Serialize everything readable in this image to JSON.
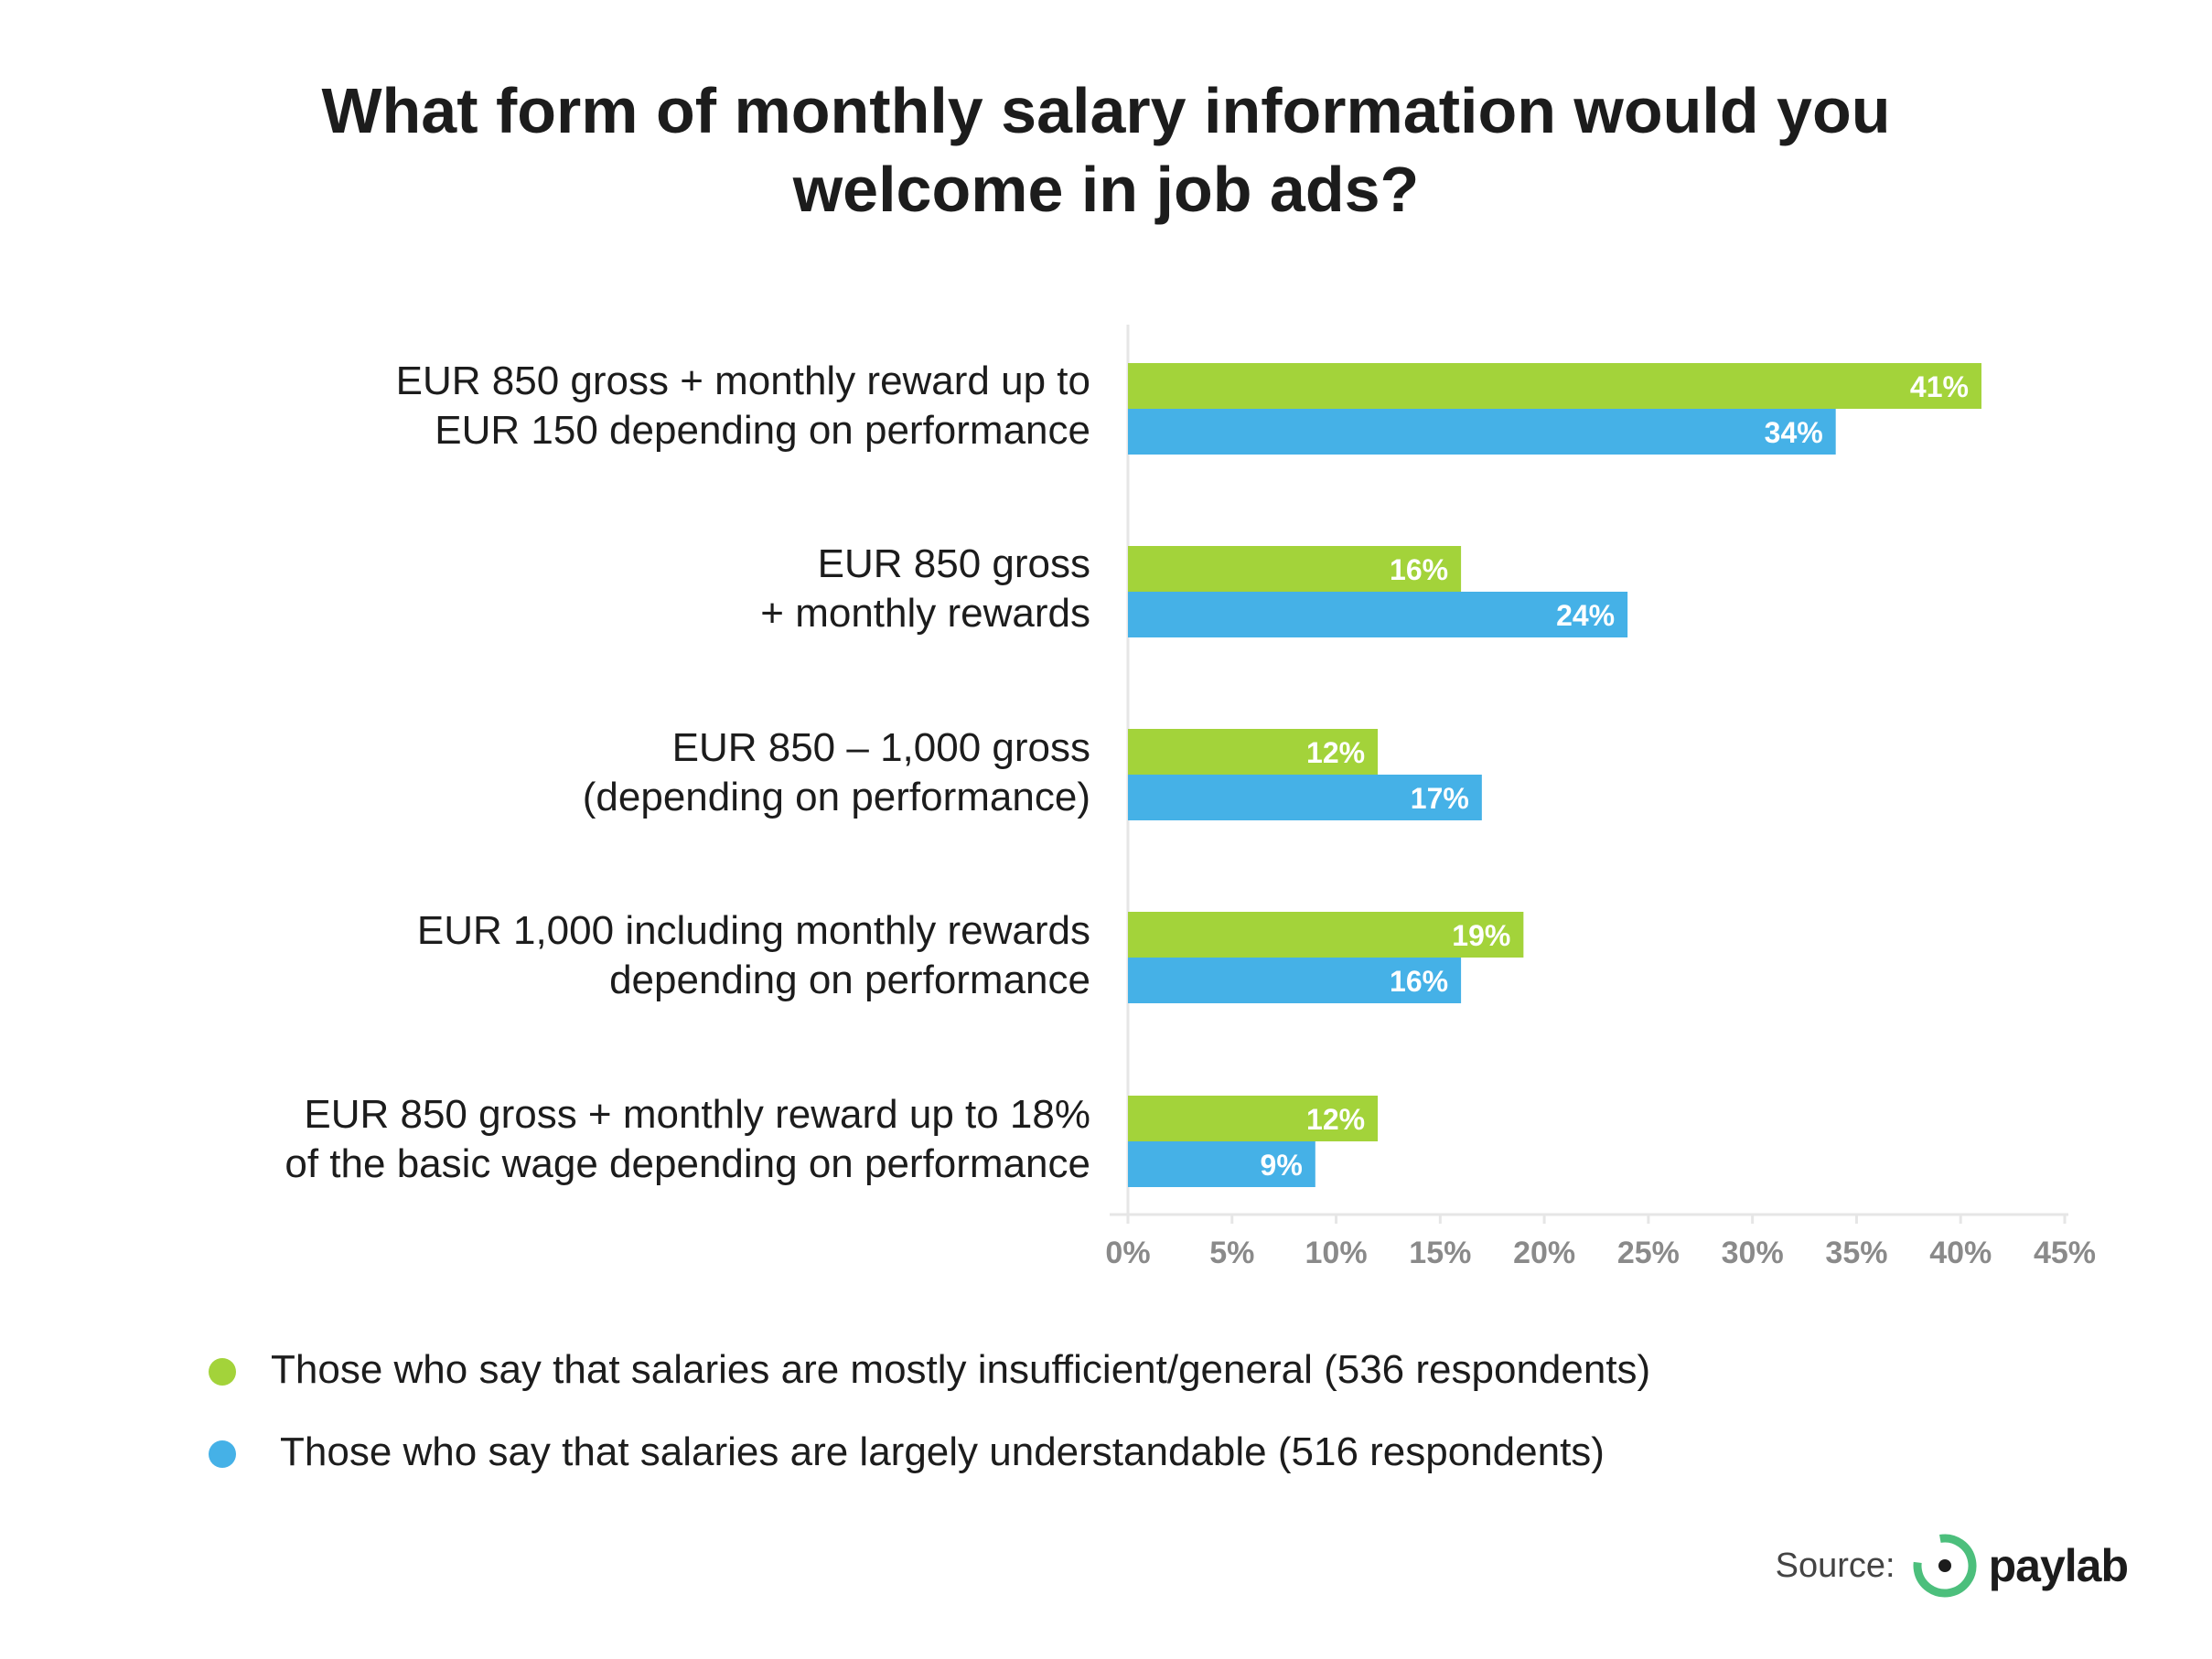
{
  "title_lines": [
    "What form of monthly salary information would you",
    "welcome in job ads?"
  ],
  "chart_data": {
    "type": "bar",
    "orientation": "horizontal",
    "categories": [
      [
        "EUR 850 gross + monthly reward up to",
        "EUR 150 depending on performance"
      ],
      [
        "EUR 850 gross",
        "+ monthly rewards"
      ],
      [
        "EUR 850 – 1,000 gross",
        "(depending on performance)"
      ],
      [
        "EUR 1,000 including monthly rewards",
        "depending on performance"
      ],
      [
        "EUR 850 gross + monthly reward up to 18%",
        "of the basic wage depending on performance"
      ]
    ],
    "series": [
      {
        "name": "Those who say that salaries are mostly insufficient/general (536 respondents)",
        "color": "#a3d33a",
        "values": [
          41,
          16,
          12,
          19,
          12
        ],
        "labels": [
          "41%",
          "16%",
          "12%",
          "19%",
          "12%"
        ]
      },
      {
        "name": "Those who say that salaries are largely understandable (516 respondents)",
        "color": "#45b1e7",
        "values": [
          34,
          24,
          17,
          16,
          9
        ],
        "labels": [
          "34%",
          "24%",
          "17%",
          "16%",
          "9%"
        ]
      }
    ],
    "xlim": [
      0,
      45
    ],
    "xticks": [
      "0%",
      "5%",
      "10%",
      "15%",
      "20%",
      "25%",
      "30%",
      "35%",
      "40%",
      "45%"
    ],
    "xlabel": "",
    "ylabel": "",
    "legend_position": "bottom-left",
    "grid": false
  },
  "source": {
    "label": "Source:",
    "brand": "paylab",
    "accent": "#4cbf7c"
  }
}
